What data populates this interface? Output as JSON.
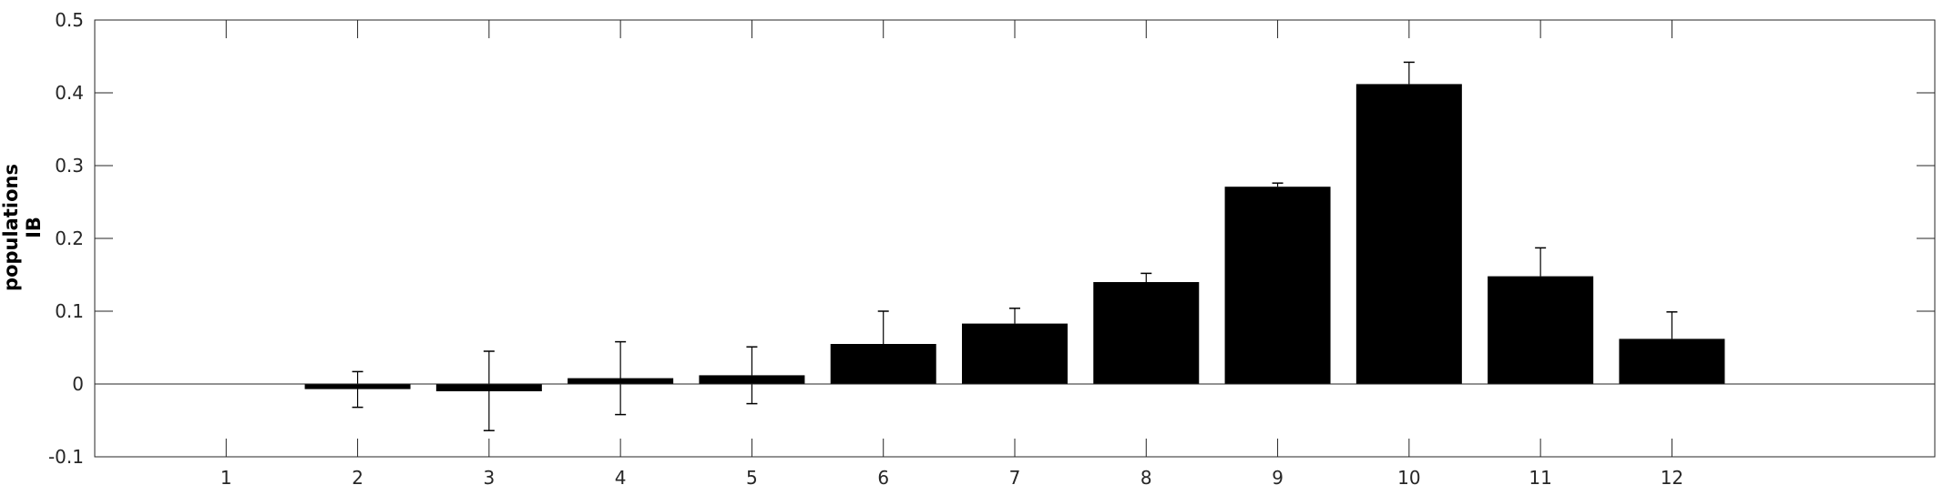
{
  "chart_data": {
    "type": "bar",
    "title": "",
    "xlabel": "",
    "ylabel_lines": [
      "populations",
      "IB"
    ],
    "categories": [
      "1",
      "2",
      "3",
      "4",
      "5",
      "6",
      "7",
      "8",
      "9",
      "10",
      "11",
      "12"
    ],
    "values": [
      null,
      -0.007,
      -0.01,
      0.008,
      0.012,
      0.055,
      0.083,
      0.14,
      0.271,
      0.412,
      0.148,
      0.062
    ],
    "error_upper": [
      null,
      0.017,
      0.045,
      0.058,
      0.051,
      0.1,
      0.104,
      0.152,
      0.276,
      0.442,
      0.187,
      0.099
    ],
    "error_lower": [
      null,
      -0.032,
      -0.064,
      -0.042,
      -0.027,
      null,
      null,
      null,
      null,
      null,
      null,
      null
    ],
    "ylim": [
      -0.1,
      0.5
    ],
    "yticks": [
      -0.1,
      0,
      0.1,
      0.2,
      0.3,
      0.4,
      0.5
    ],
    "ytick_labels": [
      "-0.1",
      "0",
      "0.1",
      "0.2",
      "0.3",
      "0.4",
      "0.5"
    ],
    "xlim": [
      0,
      14
    ],
    "grid": false,
    "legend": "none",
    "bar_color": "#000000",
    "axis_color": "#262626"
  }
}
